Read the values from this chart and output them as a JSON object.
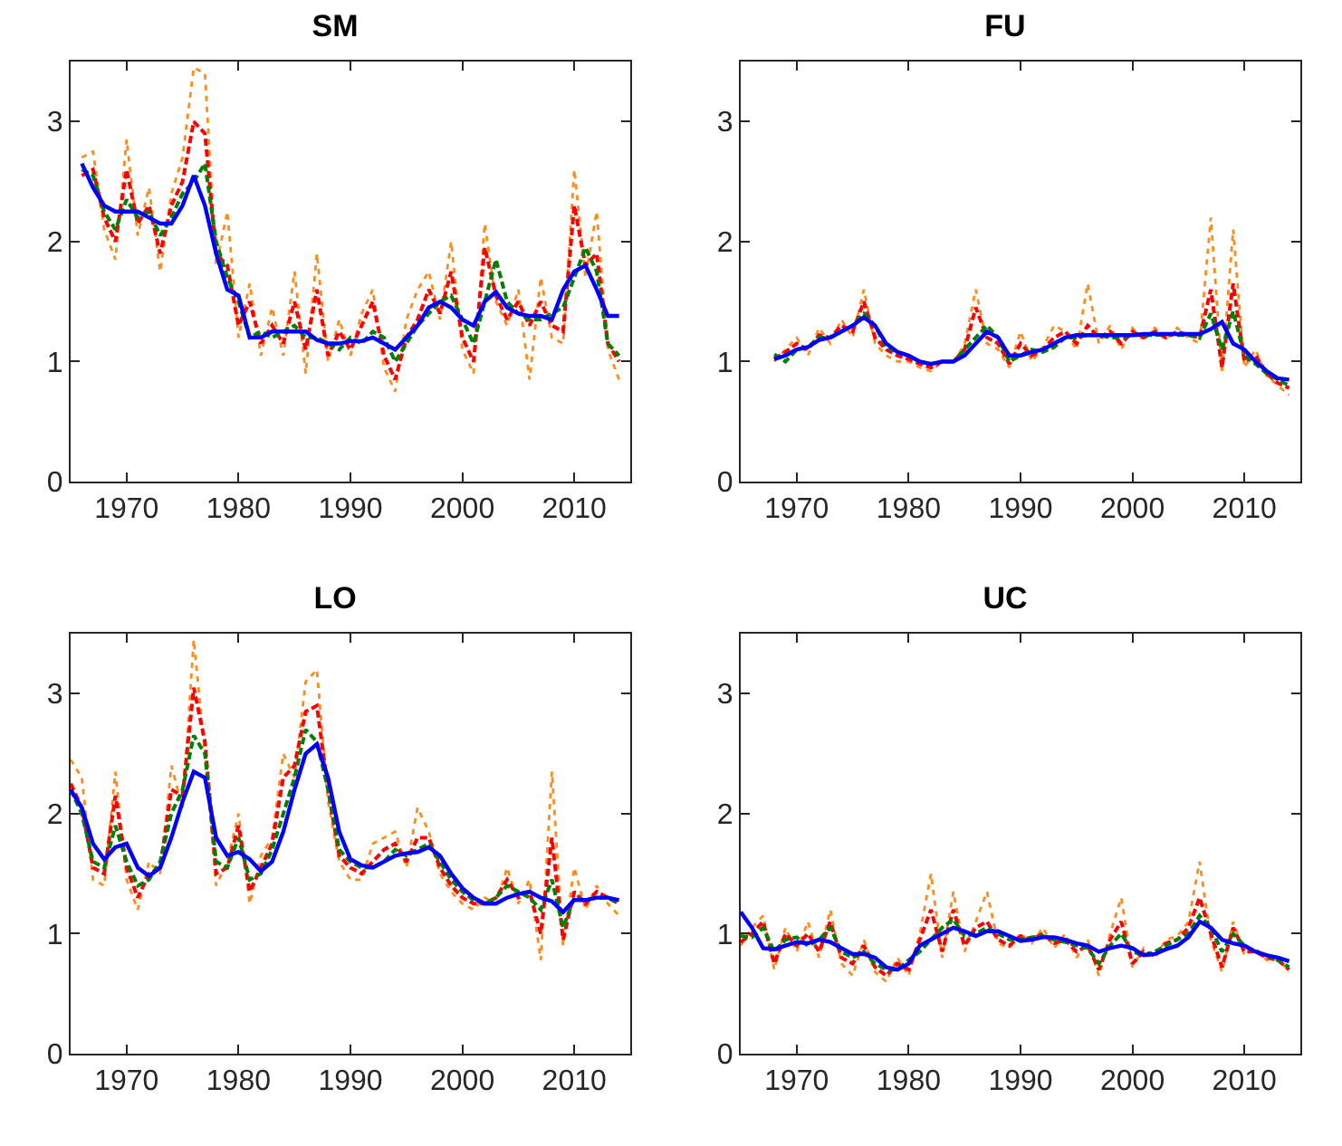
{
  "chart_data": [
    {
      "type": "line",
      "title": "SM",
      "x": [
        1966,
        1967,
        1968,
        1969,
        1970,
        1971,
        1972,
        1973,
        1974,
        1975,
        1976,
        1977,
        1978,
        1979,
        1980,
        1981,
        1982,
        1983,
        1984,
        1985,
        1986,
        1987,
        1988,
        1989,
        1990,
        1991,
        1992,
        1993,
        1994,
        1995,
        1996,
        1997,
        1998,
        1999,
        2000,
        2001,
        2002,
        2003,
        2004,
        2005,
        2006,
        2007,
        2008,
        2009,
        2010,
        2011,
        2012,
        2013,
        2014
      ],
      "xlim": [
        1965,
        2015
      ],
      "xticks": [
        1970,
        1980,
        1990,
        2000,
        2010
      ],
      "ylim": [
        0,
        3.5
      ],
      "yticks": [
        0,
        1,
        2,
        3
      ],
      "series": [
        {
          "color": "#ff8c1a",
          "line_style": "dotted",
          "values": [
            2.7,
            2.75,
            2.1,
            1.85,
            2.85,
            2.05,
            2.45,
            1.75,
            2.4,
            2.7,
            3.45,
            3.4,
            1.8,
            2.25,
            1.2,
            1.65,
            1.05,
            1.45,
            1.05,
            1.75,
            0.9,
            1.9,
            1.0,
            1.35,
            1.05,
            1.4,
            1.6,
            0.95,
            0.75,
            1.35,
            1.6,
            1.75,
            1.35,
            2.0,
            1.1,
            0.9,
            2.15,
            1.5,
            1.3,
            1.6,
            0.85,
            1.7,
            1.2,
            1.15,
            2.6,
            1.7,
            2.25,
            1.1,
            0.85
          ]
        },
        {
          "color": "#ff0000",
          "line_style": "dashed",
          "values": [
            2.55,
            2.6,
            2.2,
            2.0,
            2.6,
            2.15,
            2.3,
            1.9,
            2.3,
            2.5,
            3.0,
            2.9,
            1.9,
            1.8,
            1.3,
            1.5,
            1.15,
            1.3,
            1.15,
            1.5,
            1.1,
            1.6,
            1.05,
            1.25,
            1.1,
            1.3,
            1.5,
            1.05,
            0.85,
            1.2,
            1.35,
            1.6,
            1.4,
            1.75,
            1.2,
            1.0,
            1.95,
            1.55,
            1.35,
            1.5,
            1.3,
            1.5,
            1.3,
            1.25,
            2.3,
            1.8,
            1.9,
            1.15,
            1.0
          ]
        },
        {
          "color": "#008000",
          "line_style": "dashed",
          "values": [
            2.6,
            2.55,
            2.25,
            2.1,
            2.35,
            2.2,
            2.25,
            2.05,
            2.2,
            2.4,
            2.5,
            2.65,
            2.0,
            1.7,
            1.5,
            1.2,
            1.25,
            1.2,
            1.25,
            1.3,
            1.2,
            1.2,
            1.15,
            1.1,
            1.2,
            1.15,
            1.25,
            1.2,
            1.0,
            1.15,
            1.3,
            1.4,
            1.5,
            1.55,
            1.35,
            1.15,
            1.5,
            1.85,
            1.5,
            1.4,
            1.35,
            1.35,
            1.4,
            1.45,
            1.7,
            1.95,
            1.75,
            1.15,
            1.05
          ]
        },
        {
          "color": "#0000ff",
          "line_style": "solid",
          "values": [
            2.65,
            2.45,
            2.3,
            2.25,
            2.25,
            2.25,
            2.2,
            2.15,
            2.15,
            2.3,
            2.55,
            2.3,
            1.9,
            1.6,
            1.55,
            1.2,
            1.2,
            1.25,
            1.25,
            1.25,
            1.25,
            1.18,
            1.15,
            1.15,
            1.17,
            1.17,
            1.2,
            1.15,
            1.1,
            1.2,
            1.3,
            1.45,
            1.5,
            1.45,
            1.35,
            1.3,
            1.5,
            1.58,
            1.45,
            1.4,
            1.38,
            1.38,
            1.35,
            1.6,
            1.75,
            1.8,
            1.6,
            1.38,
            1.38
          ]
        }
      ]
    },
    {
      "type": "line",
      "title": "FU",
      "x": [
        1968,
        1969,
        1970,
        1971,
        1972,
        1973,
        1974,
        1975,
        1976,
        1977,
        1978,
        1979,
        1980,
        1981,
        1982,
        1983,
        1984,
        1985,
        1986,
        1987,
        1988,
        1989,
        1990,
        1991,
        1992,
        1993,
        1994,
        1995,
        1996,
        1997,
        1998,
        1999,
        2000,
        2001,
        2002,
        2003,
        2004,
        2005,
        2006,
        2007,
        2008,
        2009,
        2010,
        2011,
        2012,
        2013,
        2014
      ],
      "xlim": [
        1965,
        2015
      ],
      "xticks": [
        1970,
        1980,
        1990,
        2000,
        2010
      ],
      "ylim": [
        0,
        3.5
      ],
      "yticks": [
        0,
        1,
        2,
        3
      ],
      "series": [
        {
          "color": "#ff8c1a",
          "line_style": "dotted",
          "values": [
            1.0,
            1.1,
            1.2,
            1.05,
            1.28,
            1.15,
            1.35,
            1.2,
            1.6,
            1.15,
            1.05,
            1.0,
            1.0,
            0.95,
            0.92,
            1.0,
            0.98,
            1.15,
            1.6,
            1.15,
            1.1,
            0.95,
            1.25,
            1.0,
            1.12,
            1.3,
            1.25,
            1.1,
            1.65,
            1.15,
            1.3,
            1.1,
            1.28,
            1.18,
            1.28,
            1.18,
            1.28,
            1.2,
            1.15,
            2.2,
            0.9,
            2.1,
            0.95,
            1.1,
            0.88,
            0.8,
            0.72
          ]
        },
        {
          "color": "#ff0000",
          "line_style": "dashed",
          "values": [
            1.02,
            1.08,
            1.15,
            1.1,
            1.22,
            1.2,
            1.3,
            1.25,
            1.5,
            1.2,
            1.1,
            1.05,
            1.02,
            0.98,
            0.95,
            1.0,
            1.0,
            1.1,
            1.45,
            1.2,
            1.15,
            0.98,
            1.15,
            1.05,
            1.1,
            1.2,
            1.25,
            1.15,
            1.3,
            1.2,
            1.25,
            1.15,
            1.25,
            1.2,
            1.25,
            1.2,
            1.25,
            1.22,
            1.2,
            1.6,
            0.95,
            1.65,
            1.0,
            1.05,
            0.9,
            0.82,
            0.78
          ]
        },
        {
          "color": "#008000",
          "line_style": "dashed",
          "values": [
            1.06,
            1.0,
            1.1,
            1.12,
            1.2,
            1.2,
            1.25,
            1.3,
            1.4,
            1.3,
            1.12,
            1.08,
            1.05,
            1.0,
            0.98,
            1.0,
            1.0,
            1.1,
            1.2,
            1.3,
            1.2,
            1.0,
            1.05,
            1.1,
            1.08,
            1.12,
            1.2,
            1.2,
            1.22,
            1.22,
            1.2,
            1.2,
            1.22,
            1.22,
            1.22,
            1.23,
            1.22,
            1.22,
            1.2,
            1.4,
            1.1,
            1.42,
            1.05,
            0.98,
            0.9,
            0.85,
            0.8
          ]
        },
        {
          "color": "#0000ff",
          "line_style": "solid",
          "values": [
            1.02,
            1.05,
            1.1,
            1.12,
            1.18,
            1.2,
            1.25,
            1.3,
            1.37,
            1.3,
            1.15,
            1.08,
            1.05,
            1.0,
            0.98,
            1.0,
            1.0,
            1.05,
            1.15,
            1.25,
            1.2,
            1.05,
            1.05,
            1.08,
            1.1,
            1.15,
            1.2,
            1.22,
            1.22,
            1.22,
            1.22,
            1.22,
            1.22,
            1.23,
            1.23,
            1.23,
            1.23,
            1.23,
            1.23,
            1.27,
            1.33,
            1.15,
            1.1,
            1.0,
            0.92,
            0.86,
            0.85
          ]
        }
      ]
    },
    {
      "type": "line",
      "title": "LO",
      "x": [
        1965,
        1966,
        1967,
        1968,
        1969,
        1970,
        1971,
        1972,
        1973,
        1974,
        1975,
        1976,
        1977,
        1978,
        1979,
        1980,
        1981,
        1982,
        1983,
        1984,
        1985,
        1986,
        1987,
        1988,
        1989,
        1990,
        1991,
        1992,
        1993,
        1994,
        1995,
        1996,
        1997,
        1998,
        1999,
        2000,
        2001,
        2002,
        2003,
        2004,
        2005,
        2006,
        2007,
        2008,
        2009,
        2010,
        2011,
        2012,
        2013,
        2014
      ],
      "xlim": [
        1965,
        2015
      ],
      "xticks": [
        1970,
        1980,
        1990,
        2000,
        2010
      ],
      "ylim": [
        0,
        3.5
      ],
      "yticks": [
        0,
        1,
        2,
        3
      ],
      "series": [
        {
          "color": "#ff8c1a",
          "line_style": "dotted",
          "values": [
            2.45,
            2.3,
            1.45,
            1.4,
            2.35,
            1.45,
            1.2,
            1.6,
            1.5,
            2.4,
            2.05,
            3.45,
            2.5,
            1.4,
            1.6,
            2.0,
            1.25,
            1.65,
            1.8,
            2.5,
            2.3,
            3.1,
            3.2,
            2.1,
            1.6,
            1.45,
            1.45,
            1.75,
            1.8,
            1.85,
            1.55,
            2.05,
            1.85,
            1.5,
            1.35,
            1.25,
            1.2,
            1.3,
            1.25,
            1.55,
            1.25,
            1.45,
            0.78,
            2.35,
            0.9,
            1.55,
            1.2,
            1.4,
            1.25,
            1.15
          ]
        },
        {
          "color": "#ff0000",
          "line_style": "dashed",
          "values": [
            2.25,
            2.05,
            1.55,
            1.5,
            2.15,
            1.55,
            1.3,
            1.5,
            1.55,
            2.2,
            2.15,
            3.05,
            2.6,
            1.5,
            1.55,
            1.9,
            1.35,
            1.55,
            1.75,
            2.3,
            2.4,
            2.85,
            2.9,
            2.2,
            1.65,
            1.55,
            1.5,
            1.6,
            1.7,
            1.75,
            1.6,
            1.8,
            1.8,
            1.55,
            1.4,
            1.3,
            1.25,
            1.25,
            1.3,
            1.45,
            1.3,
            1.35,
            1.0,
            1.8,
            0.95,
            1.35,
            1.25,
            1.35,
            1.3,
            1.25
          ]
        },
        {
          "color": "#008000",
          "line_style": "dashed",
          "values": [
            2.2,
            2.0,
            1.6,
            1.55,
            1.9,
            1.6,
            1.4,
            1.45,
            1.6,
            2.0,
            2.2,
            2.65,
            2.5,
            1.6,
            1.55,
            1.8,
            1.45,
            1.5,
            1.7,
            2.0,
            2.3,
            2.7,
            2.6,
            2.2,
            1.7,
            1.6,
            1.55,
            1.55,
            1.6,
            1.7,
            1.65,
            1.7,
            1.75,
            1.6,
            1.45,
            1.35,
            1.28,
            1.25,
            1.3,
            1.4,
            1.35,
            1.3,
            1.2,
            1.45,
            1.05,
            1.3,
            1.28,
            1.3,
            1.3,
            1.25
          ]
        },
        {
          "color": "#0000ff",
          "line_style": "solid",
          "values": [
            2.2,
            2.05,
            1.75,
            1.62,
            1.72,
            1.75,
            1.55,
            1.48,
            1.55,
            1.8,
            2.1,
            2.35,
            2.3,
            1.8,
            1.65,
            1.68,
            1.62,
            1.52,
            1.6,
            1.85,
            2.2,
            2.5,
            2.58,
            2.3,
            1.85,
            1.62,
            1.57,
            1.55,
            1.6,
            1.65,
            1.67,
            1.68,
            1.72,
            1.65,
            1.5,
            1.38,
            1.3,
            1.25,
            1.25,
            1.3,
            1.33,
            1.35,
            1.3,
            1.27,
            1.18,
            1.28,
            1.28,
            1.3,
            1.3,
            1.28
          ]
        }
      ]
    },
    {
      "type": "line",
      "title": "UC",
      "x": [
        1965,
        1966,
        1967,
        1968,
        1969,
        1970,
        1971,
        1972,
        1973,
        1974,
        1975,
        1976,
        1977,
        1978,
        1979,
        1980,
        1981,
        1982,
        1983,
        1984,
        1985,
        1986,
        1987,
        1988,
        1989,
        1990,
        1991,
        1992,
        1993,
        1994,
        1995,
        1996,
        1997,
        1998,
        1999,
        2000,
        2001,
        2002,
        2003,
        2004,
        2005,
        2006,
        2007,
        2008,
        2009,
        2010,
        2011,
        2012,
        2013,
        2014
      ],
      "xlim": [
        1965,
        2015
      ],
      "xticks": [
        1970,
        1980,
        1990,
        2000,
        2010
      ],
      "ylim": [
        0,
        3.5
      ],
      "yticks": [
        0,
        1,
        2,
        3
      ],
      "series": [
        {
          "color": "#ff8c1a",
          "line_style": "dotted",
          "values": [
            0.9,
            1.05,
            1.15,
            0.7,
            1.05,
            0.85,
            1.1,
            0.8,
            1.2,
            0.75,
            0.65,
            0.95,
            0.68,
            0.6,
            0.8,
            0.65,
            1.0,
            1.5,
            0.8,
            1.35,
            0.85,
            1.1,
            1.35,
            0.92,
            0.88,
            1.0,
            0.92,
            1.05,
            0.88,
            1.0,
            0.8,
            0.95,
            0.65,
            1.0,
            1.3,
            0.72,
            0.88,
            0.8,
            0.95,
            0.98,
            1.1,
            1.6,
            0.95,
            0.68,
            1.1,
            0.82,
            0.88,
            0.78,
            0.8,
            0.68
          ]
        },
        {
          "color": "#ff0000",
          "line_style": "dashed",
          "values": [
            0.93,
            1.0,
            1.1,
            0.75,
            1.0,
            0.9,
            1.0,
            0.85,
            1.1,
            0.8,
            0.75,
            0.9,
            0.72,
            0.65,
            0.75,
            0.7,
            0.95,
            1.2,
            0.85,
            1.2,
            0.9,
            1.05,
            1.1,
            0.95,
            0.9,
            0.98,
            0.95,
            1.0,
            0.92,
            0.95,
            0.85,
            0.9,
            0.7,
            0.95,
            1.1,
            0.75,
            0.85,
            0.82,
            0.92,
            0.95,
            1.05,
            1.3,
            1.0,
            0.72,
            1.05,
            0.85,
            0.85,
            0.8,
            0.78,
            0.7
          ]
        },
        {
          "color": "#008000",
          "line_style": "dashed",
          "values": [
            0.98,
            0.97,
            1.05,
            0.85,
            0.95,
            0.97,
            0.9,
            0.95,
            1.05,
            0.85,
            0.8,
            0.85,
            0.75,
            0.7,
            0.7,
            0.78,
            0.85,
            0.95,
            1.05,
            1.12,
            0.98,
            1.0,
            1.05,
            1.0,
            0.95,
            0.95,
            0.97,
            0.98,
            0.95,
            0.93,
            0.9,
            0.88,
            0.75,
            0.9,
            1.0,
            0.85,
            0.82,
            0.85,
            0.9,
            0.95,
            1.0,
            1.15,
            1.05,
            0.85,
            1.0,
            0.9,
            0.85,
            0.82,
            0.78,
            0.72
          ]
        },
        {
          "color": "#0000ff",
          "line_style": "solid",
          "values": [
            1.18,
            1.05,
            0.88,
            0.87,
            0.9,
            0.93,
            0.92,
            0.95,
            0.93,
            0.88,
            0.83,
            0.83,
            0.8,
            0.72,
            0.7,
            0.75,
            0.9,
            0.95,
            1.0,
            1.05,
            1.02,
            0.98,
            1.02,
            1.02,
            0.98,
            0.94,
            0.95,
            0.97,
            0.97,
            0.95,
            0.92,
            0.9,
            0.85,
            0.88,
            0.9,
            0.88,
            0.82,
            0.83,
            0.87,
            0.9,
            0.97,
            1.1,
            1.05,
            0.95,
            0.92,
            0.9,
            0.85,
            0.82,
            0.8,
            0.77
          ]
        }
      ]
    }
  ]
}
